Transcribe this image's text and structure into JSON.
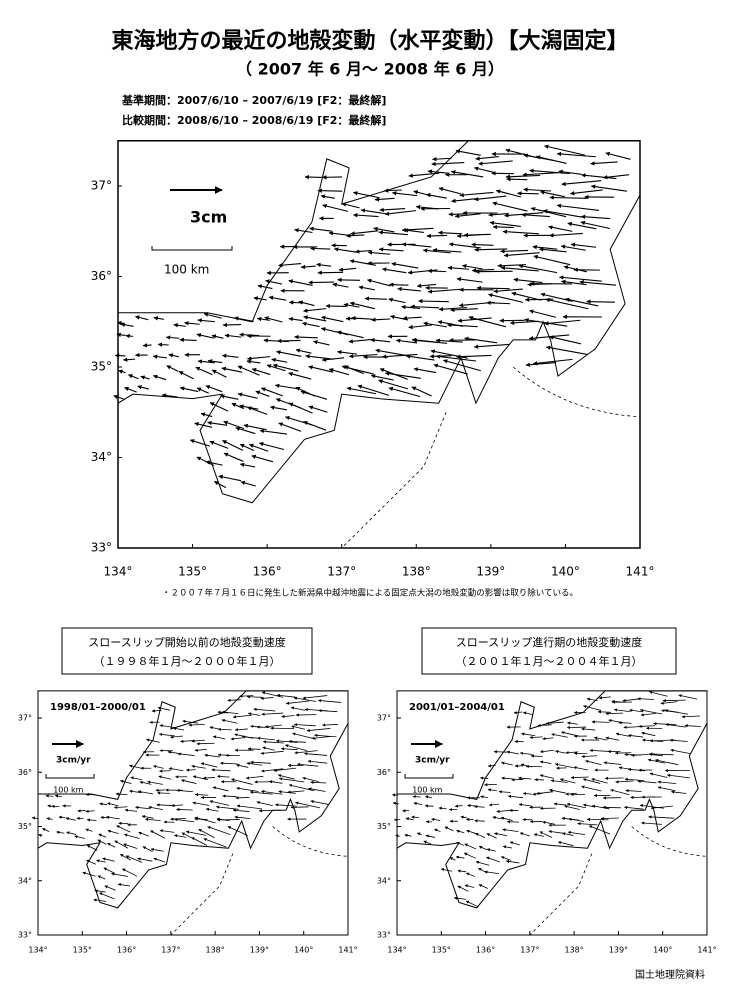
{
  "header": {
    "title": "東海地方の最近の地殻変動（水平変動）【大潟固定】",
    "subtitle": "（ 2007 年 6 月～ 2008 年 6 月）"
  },
  "periods": [
    "基準期間：2007/6/10 – 2007/6/19 [F2：最終解]",
    "比較期間：2008/6/10 – 2008/6/19 [F2：最終解]"
  ],
  "main_map": {
    "scale_arrow": "3cm",
    "scale_bar": "100 km",
    "lat_labels": [
      "37°",
      "36°",
      "35°",
      "34°",
      "33°"
    ],
    "lon_labels": [
      "134°",
      "135°",
      "136°",
      "137°",
      "138°",
      "139°",
      "140°",
      "141°"
    ]
  },
  "note": "・２００７年７月１６日に発生した新潟県中越沖地震による固定点大潟の地殻変動の影響は取り除いている。",
  "panels": [
    {
      "caption": [
        "スロースリップ開始以前の地殻変動速度",
        "（１９９８年１月～２０００年１月）"
      ],
      "period_label": "1998/01–2000/01",
      "scale_arrow": "3cm/yr",
      "scale_bar": "100 km",
      "lat_labels": [
        "37°",
        "36°",
        "35°",
        "34°",
        "33°"
      ],
      "lon_labels": [
        "134°",
        "135°",
        "136°",
        "137°",
        "138°",
        "139°",
        "140°",
        "141°"
      ]
    },
    {
      "caption": [
        "スロースリップ進行期の地殻変動速度",
        "（２００１年１月～２００４年１月）"
      ],
      "period_label": "2001/01–2004/01",
      "scale_arrow": "3cm/yr",
      "scale_bar": "100 km",
      "lat_labels": [
        "37°",
        "36°",
        "35°",
        "34°",
        "33°"
      ],
      "lon_labels": [
        "134°",
        "135°",
        "136°",
        "137°",
        "138°",
        "139°",
        "140°",
        "141°"
      ]
    }
  ],
  "footer": "国土地理院資料"
}
